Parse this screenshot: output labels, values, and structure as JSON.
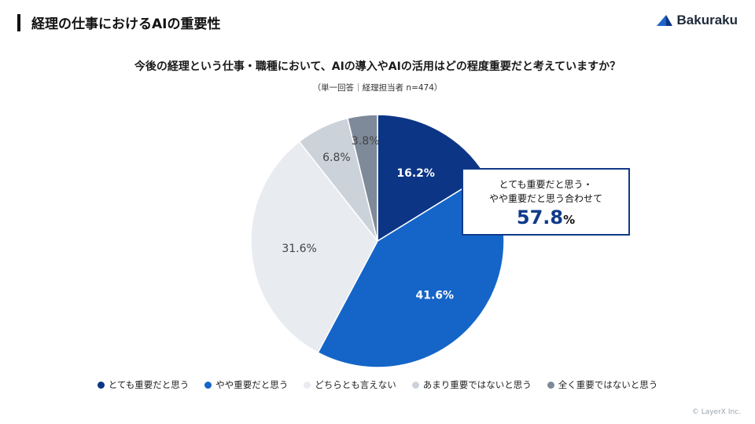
{
  "header": {
    "title": "経理の仕事におけるAIの重要性",
    "brand": "Bakuraku"
  },
  "colors": {
    "very": "#0c3586",
    "somewhat": "#1565c8",
    "neither": "#e8ebef",
    "notmuch": "#ccd2da",
    "notatall": "#7e8a99"
  },
  "callout": {
    "line1": "とても重要だと思う・",
    "line2": "やや重要だと思う合わせて",
    "value": "57.8",
    "unit": "%"
  },
  "chart_data": {
    "type": "pie",
    "title": "今後の経理という仕事・職種において、AIの導入やAIの活用はどの程度重要だと考えていますか？",
    "subtitle": "（単一回答｜経理担当者 n=474）",
    "start": "12 o'clock, clockwise",
    "slices": [
      {
        "label": "とても重要だと思う",
        "value": 16.2,
        "display": "16.2%"
      },
      {
        "label": "やや重要だと思う",
        "value": 41.6,
        "display": "41.6%"
      },
      {
        "label": "どちらとも言えない",
        "value": 31.6,
        "display": "31.6%"
      },
      {
        "label": "あまり重要ではないと思う",
        "value": 6.8,
        "display": "6.8%"
      },
      {
        "label": "全く重要ではないと思う",
        "value": 3.8,
        "display": "3.8%"
      }
    ]
  },
  "footer": {
    "copyright": "© LayerX Inc."
  }
}
